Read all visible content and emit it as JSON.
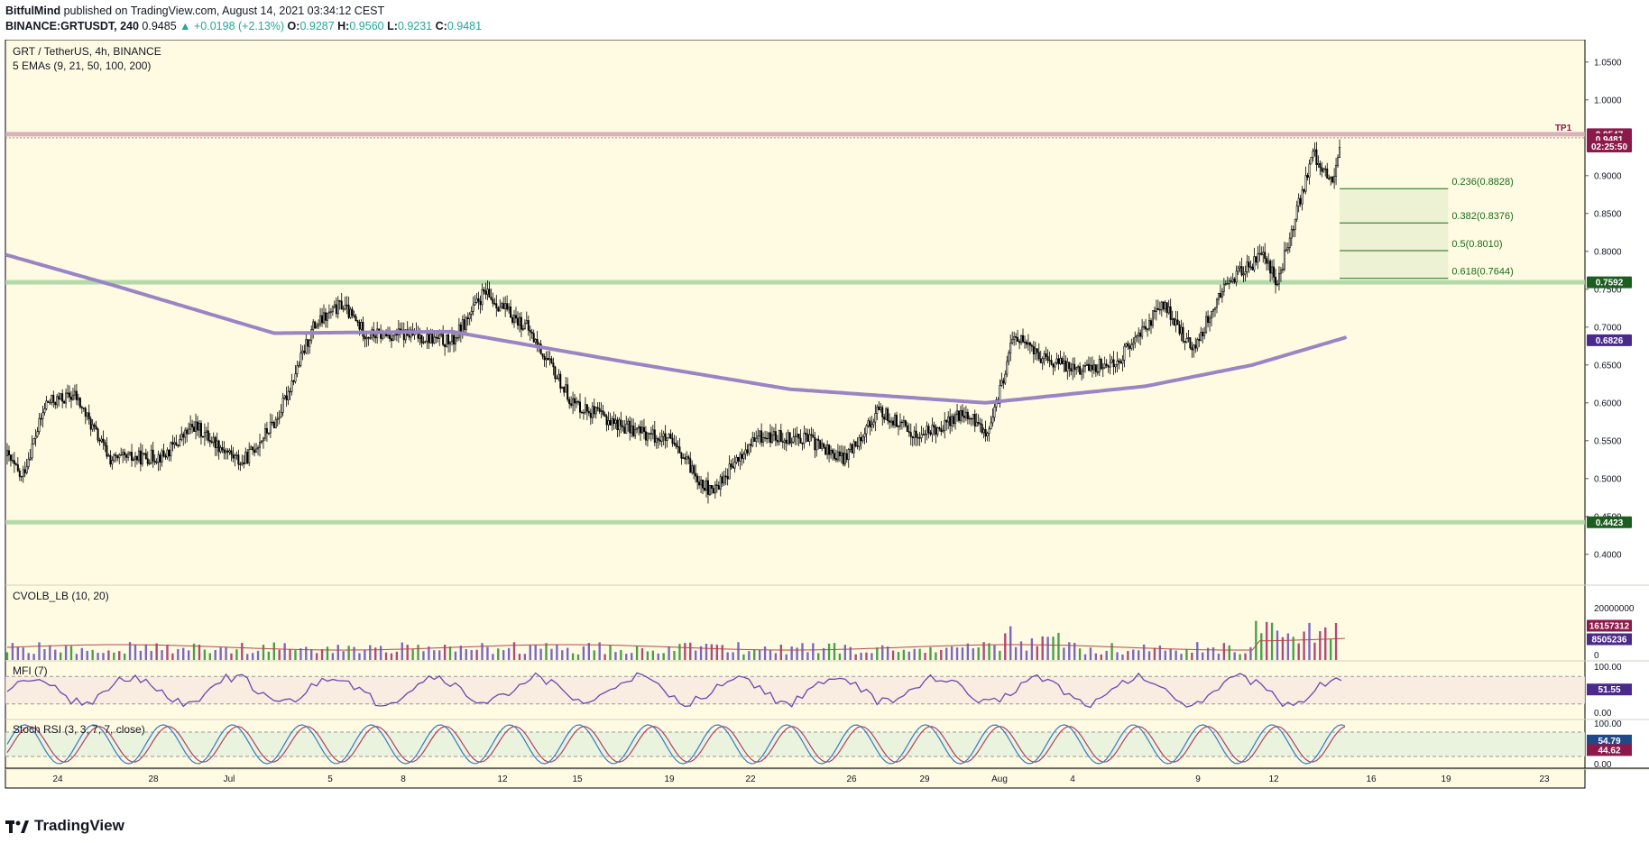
{
  "header": {
    "author": "BitfulMind",
    "published_text": "published on TradingView.com, August 14, 2021 03:34:12 CEST",
    "symbol": "BINANCE:GRTUSDT, 240",
    "last": "0.9485",
    "change": "▲ +0.0198 (+2.13%)",
    "o_label": "O:",
    "o_value": "0.9287",
    "h_label": "H:",
    "h_value": "0.9560",
    "l_label": "L:",
    "l_value": "0.9231",
    "c_label": "C:",
    "c_value": "0.9481"
  },
  "chart_data": {
    "type": "candlestick",
    "title": "GRT / TetherUS, 4h, BINANCE",
    "indicator_label": "5 EMAs (9, 21, 50, 100, 200)",
    "price_axis": {
      "min": 0.37,
      "max": 1.07,
      "ticks": [
        "1.0500",
        "1.0000",
        "0.9000",
        "0.8500",
        "0.8000",
        "0.7500",
        "0.7000",
        "0.6500",
        "0.6000",
        "0.5500",
        "0.5000",
        "0.4500",
        "0.4000"
      ]
    },
    "x_labels": [
      "24",
      "28",
      "Jul",
      "5",
      "8",
      "12",
      "15",
      "19",
      "22",
      "26",
      "29",
      "Aug",
      "4",
      "9",
      "12",
      "16",
      "19",
      "23"
    ],
    "price_keypoints": [
      [
        0,
        0.53
      ],
      [
        8,
        0.5
      ],
      [
        22,
        0.6
      ],
      [
        38,
        0.61
      ],
      [
        58,
        0.525
      ],
      [
        88,
        0.53
      ],
      [
        105,
        0.57
      ],
      [
        132,
        0.52
      ],
      [
        152,
        0.58
      ],
      [
        172,
        0.7
      ],
      [
        188,
        0.73
      ],
      [
        202,
        0.69
      ],
      [
        226,
        0.69
      ],
      [
        250,
        0.68
      ],
      [
        268,
        0.745
      ],
      [
        292,
        0.7
      ],
      [
        318,
        0.6
      ],
      [
        345,
        0.57
      ],
      [
        372,
        0.55
      ],
      [
        396,
        0.48
      ],
      [
        402,
        0.5
      ],
      [
        422,
        0.555
      ],
      [
        448,
        0.555
      ],
      [
        470,
        0.525
      ],
      [
        490,
        0.59
      ],
      [
        512,
        0.555
      ],
      [
        538,
        0.585
      ],
      [
        552,
        0.56
      ],
      [
        566,
        0.69
      ],
      [
        584,
        0.655
      ],
      [
        606,
        0.645
      ],
      [
        624,
        0.655
      ],
      [
        650,
        0.73
      ],
      [
        666,
        0.67
      ],
      [
        686,
        0.76
      ],
      [
        706,
        0.795
      ],
      [
        714,
        0.76
      ],
      [
        734,
        0.93
      ],
      [
        745,
        0.89
      ],
      [
        750,
        0.95
      ]
    ],
    "candle_count": 750,
    "ema200_keypoints": [
      [
        0,
        0.795
      ],
      [
        60,
        0.755
      ],
      [
        150,
        0.692
      ],
      [
        250,
        0.694
      ],
      [
        350,
        0.653
      ],
      [
        440,
        0.618
      ],
      [
        550,
        0.6
      ],
      [
        640,
        0.622
      ],
      [
        700,
        0.65
      ],
      [
        752,
        0.686
      ]
    ],
    "horizontal_levels": [
      {
        "name": "TP1",
        "price": 0.9547,
        "color": "#d4a5b1"
      },
      {
        "name": "resistance",
        "price": 0.7592,
        "color": "#a8d4a0"
      },
      {
        "name": "support",
        "price": 0.4423,
        "color": "#a8d4a0"
      }
    ],
    "fib_levels": [
      {
        "label": "0.236(0.8828)",
        "price": 0.8828
      },
      {
        "label": "0.382(0.8376)",
        "price": 0.8376
      },
      {
        "label": "0.5(0.8010)",
        "price": 0.801
      },
      {
        "label": "0.618(0.7644)",
        "price": 0.7644
      }
    ],
    "price_tags": [
      {
        "text": "0.9547",
        "price": 0.9547,
        "color": "#8b1a4a"
      },
      {
        "text": "0.9481",
        "price": 0.9481,
        "color": "#8b1a4a"
      },
      {
        "text": "02:25:50",
        "price": 0.9385,
        "color": "#8b1a4a"
      },
      {
        "text": "0.7592",
        "price": 0.7592,
        "color": "#1b5e20"
      },
      {
        "text": "0.6826",
        "price": 0.6826,
        "color": "#4a2a8a"
      },
      {
        "text": "0.4423",
        "price": 0.4423,
        "color": "#1b5e20"
      }
    ],
    "tp1_label": "TP1",
    "volume_pane": {
      "label": "CVOLB_LB (10, 20)",
      "ticks": [
        "20000000",
        "0"
      ],
      "tags": [
        {
          "text": "16157312",
          "color": "#8b1a4a"
        },
        {
          "text": "8505236",
          "color": "#4a2a8a"
        }
      ]
    },
    "mfi_pane": {
      "label": "MFI (7)",
      "ticks": [
        "100.00",
        "0.00"
      ],
      "tag": "51.55",
      "tag_color": "#4a2a8a"
    },
    "stoch_pane": {
      "label": "Stoch RSI (3, 3, 7, 7, close)",
      "ticks": [
        "100.00",
        "0.00"
      ],
      "tags": [
        {
          "text": "54.79",
          "color": "#1e4a8a"
        },
        {
          "text": "44.62",
          "color": "#8b1a4a"
        }
      ]
    }
  },
  "footer": {
    "brand": "TradingView"
  }
}
